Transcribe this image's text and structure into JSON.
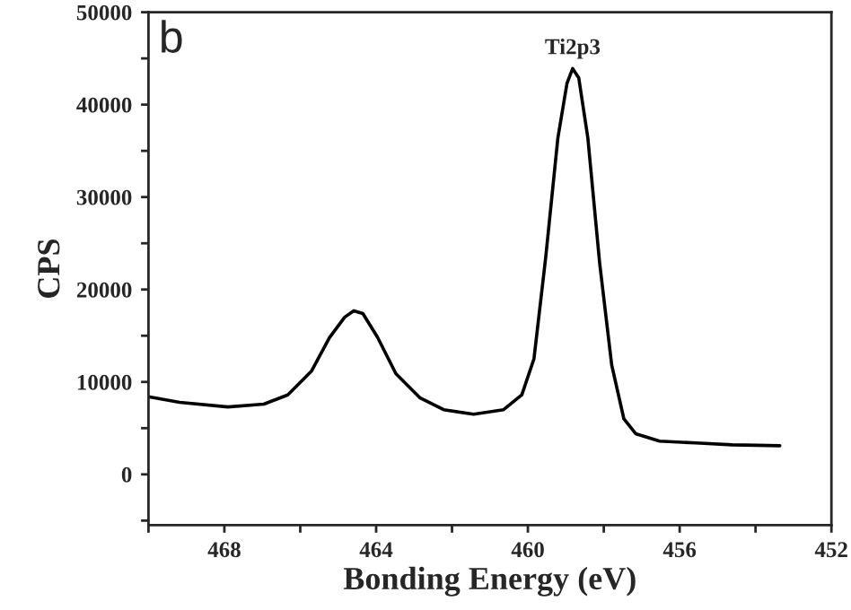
{
  "chart_data": {
    "type": "line",
    "xlabel": "Bonding Energy (eV)",
    "ylabel": "CPS",
    "annotations": [
      "b",
      {
        "text": "Ti2p3",
        "x": 458.82,
        "y": 43880
      }
    ],
    "x": [
      470.0,
      469.18,
      467.91,
      466.96,
      466.33,
      465.7,
      465.23,
      464.83,
      464.59,
      464.35,
      463.96,
      463.48,
      462.85,
      462.22,
      461.43,
      460.64,
      460.16,
      459.84,
      459.53,
      459.21,
      458.97,
      458.82,
      458.66,
      458.42,
      458.11,
      457.79,
      457.47,
      457.16,
      456.53,
      455.57,
      454.62,
      453.36
    ],
    "series": [
      {
        "color": "#000000",
        "values": [
          8400,
          7800,
          7300,
          7600,
          8600,
          11200,
          14800,
          17000,
          17700,
          17400,
          14800,
          10900,
          8300,
          7000,
          6500,
          7000,
          8600,
          12500,
          23500,
          36400,
          42300,
          43900,
          42900,
          36400,
          22900,
          11800,
          6000,
          4400,
          3600,
          3400,
          3200,
          3100
        ]
      }
    ],
    "xlim": [
      470,
      452
    ],
    "ylim": [
      -5500,
      50000
    ],
    "xticks": [
      {
        "value": 470,
        "label": null
      },
      468,
      {
        "value": 466,
        "label": null
      },
      464,
      {
        "value": 462,
        "label": null
      },
      460,
      {
        "value": 458,
        "label": null
      },
      456,
      {
        "value": 454,
        "label": null
      },
      452
    ],
    "yticks": [
      {
        "value": -5000,
        "label": null
      },
      0,
      {
        "value": 5000,
        "label": null
      },
      10000,
      {
        "value": 15000,
        "label": null
      },
      20000,
      {
        "value": 25000,
        "label": null
      },
      30000,
      {
        "value": 35000,
        "label": null
      },
      40000,
      {
        "value": 45000,
        "label": null
      },
      50000
    ],
    "grid": false,
    "legend": false,
    "marker": "none",
    "line_style": "solid"
  }
}
